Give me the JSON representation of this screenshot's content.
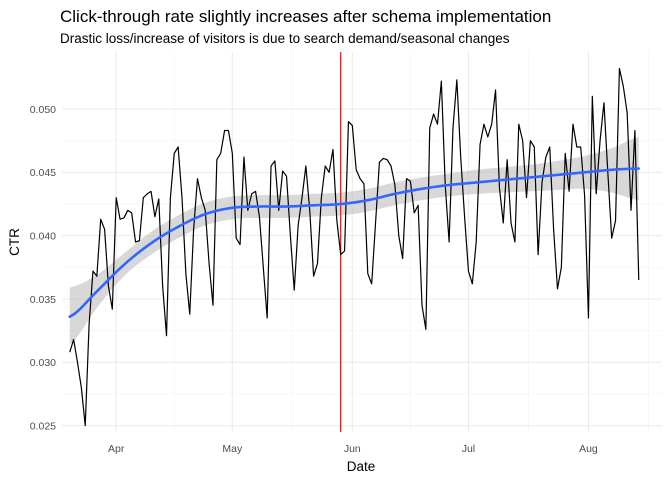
{
  "chart_data": {
    "type": "line",
    "title": "Click-through rate slightly increases after schema implementation",
    "subtitle": "Drastic loss/increase of visitors is due to search demand/seasonal changes",
    "xlabel": "Date",
    "ylabel": "CTR",
    "x_range": [
      "2019-03-18",
      "2019-08-20"
    ],
    "ylim": [
      0.0245,
      0.0545
    ],
    "x_ticks": [
      {
        "date": "2019-04-01",
        "label": "Apr"
      },
      {
        "date": "2019-05-01",
        "label": "May"
      },
      {
        "date": "2019-06-01",
        "label": "Jun"
      },
      {
        "date": "2019-07-01",
        "label": "Jul"
      },
      {
        "date": "2019-08-01",
        "label": "Aug"
      }
    ],
    "y_ticks": [
      {
        "value": 0.025,
        "label": "0.025"
      },
      {
        "value": 0.03,
        "label": "0.030"
      },
      {
        "value": 0.035,
        "label": "0.035"
      },
      {
        "value": 0.04,
        "label": "0.040"
      },
      {
        "value": 0.045,
        "label": "0.045"
      },
      {
        "value": 0.05,
        "label": "0.050"
      }
    ],
    "grid": true,
    "legend": "none",
    "reference_line": {
      "date": "2019-05-29",
      "color": "#ff0000"
    },
    "colors": {
      "ctr_line": "#000000",
      "smooth_line": "#3366ff",
      "confidence_band": "#bebebe",
      "grid_major": "#ebebeb",
      "grid_minor": "#f5f5f5"
    },
    "series": [
      {
        "start_date": "2019-03-20",
        "values": [
          0.0308,
          0.0318,
          0.03,
          0.028,
          0.025,
          0.033,
          0.0372,
          0.0368,
          0.0413,
          0.0405,
          0.036,
          0.0342,
          0.043,
          0.0413,
          0.0414,
          0.042,
          0.0418,
          0.0395,
          0.0396,
          0.043,
          0.0433,
          0.0435,
          0.0415,
          0.0429,
          0.036,
          0.0321,
          0.043,
          0.0465,
          0.047,
          0.043,
          0.037,
          0.0338,
          0.0405,
          0.0445,
          0.043,
          0.042,
          0.0378,
          0.0345,
          0.046,
          0.0465,
          0.0483,
          0.0483,
          0.0465,
          0.0398,
          0.0393,
          0.0462,
          0.042,
          0.0433,
          0.0435,
          0.0415,
          0.0375,
          0.0335,
          0.0455,
          0.0459,
          0.042,
          0.0451,
          0.0447,
          0.04,
          0.0357,
          0.0408,
          0.043,
          0.0455,
          0.042,
          0.0368,
          0.0378,
          0.043,
          0.0455,
          0.045,
          0.0468,
          0.0412,
          0.0385,
          0.0388,
          0.049,
          0.0487,
          0.0452,
          0.0445,
          0.0441,
          0.037,
          0.0362,
          0.041,
          0.0458,
          0.0461,
          0.046,
          0.0455,
          0.044,
          0.04,
          0.0382,
          0.0445,
          0.0443,
          0.0418,
          0.0424,
          0.0345,
          0.0326,
          0.0485,
          0.0496,
          0.0488,
          0.0522,
          0.044,
          0.0395,
          0.0485,
          0.0523,
          0.0462,
          0.0415,
          0.0372,
          0.0362,
          0.0395,
          0.0472,
          0.0488,
          0.0478,
          0.0488,
          0.0515,
          0.0438,
          0.041,
          0.046,
          0.041,
          0.0395,
          0.0488,
          0.0475,
          0.043,
          0.0475,
          0.047,
          0.0385,
          0.0442,
          0.0462,
          0.047,
          0.0405,
          0.0358,
          0.0375,
          0.0465,
          0.0435,
          0.0488,
          0.047,
          0.047,
          0.0432,
          0.0335,
          0.051,
          0.0433,
          0.0475,
          0.0505,
          0.045,
          0.0398,
          0.0412,
          0.0532,
          0.0518,
          0.0497,
          0.042,
          0.0483,
          0.0365
        ]
      }
    ],
    "smooth": {
      "points": [
        {
          "date": "2019-03-20",
          "value": 0.0336,
          "lower": 0.0314,
          "upper": 0.0359
        },
        {
          "date": "2019-03-27",
          "value": 0.0356,
          "lower": 0.0343,
          "upper": 0.0369
        },
        {
          "date": "2019-04-03",
          "value": 0.0377,
          "lower": 0.0368,
          "upper": 0.0386
        },
        {
          "date": "2019-04-10",
          "value": 0.0394,
          "lower": 0.0385,
          "upper": 0.0403
        },
        {
          "date": "2019-04-17",
          "value": 0.0407,
          "lower": 0.0398,
          "upper": 0.0416
        },
        {
          "date": "2019-04-24",
          "value": 0.0417,
          "lower": 0.0408,
          "upper": 0.0426
        },
        {
          "date": "2019-05-01",
          "value": 0.0422,
          "lower": 0.0413,
          "upper": 0.0431
        },
        {
          "date": "2019-05-08",
          "value": 0.0423,
          "lower": 0.0414,
          "upper": 0.0432
        },
        {
          "date": "2019-05-15",
          "value": 0.0423,
          "lower": 0.0414,
          "upper": 0.0432
        },
        {
          "date": "2019-05-22",
          "value": 0.0424,
          "lower": 0.0415,
          "upper": 0.0433
        },
        {
          "date": "2019-05-29",
          "value": 0.0425,
          "lower": 0.0416,
          "upper": 0.0434
        },
        {
          "date": "2019-06-05",
          "value": 0.0428,
          "lower": 0.0419,
          "upper": 0.0437
        },
        {
          "date": "2019-06-12",
          "value": 0.0433,
          "lower": 0.0424,
          "upper": 0.0442
        },
        {
          "date": "2019-06-19",
          "value": 0.0437,
          "lower": 0.0428,
          "upper": 0.0446
        },
        {
          "date": "2019-06-26",
          "value": 0.044,
          "lower": 0.0431,
          "upper": 0.0449
        },
        {
          "date": "2019-07-03",
          "value": 0.0442,
          "lower": 0.0433,
          "upper": 0.0452
        },
        {
          "date": "2019-07-10",
          "value": 0.0444,
          "lower": 0.0434,
          "upper": 0.0454
        },
        {
          "date": "2019-07-17",
          "value": 0.0446,
          "lower": 0.0435,
          "upper": 0.0456
        },
        {
          "date": "2019-07-24",
          "value": 0.0448,
          "lower": 0.0436,
          "upper": 0.0459
        },
        {
          "date": "2019-07-31",
          "value": 0.045,
          "lower": 0.0437,
          "upper": 0.0463
        },
        {
          "date": "2019-08-07",
          "value": 0.0452,
          "lower": 0.0434,
          "upper": 0.0469
        },
        {
          "date": "2019-08-14",
          "value": 0.0453,
          "lower": 0.0428,
          "upper": 0.0478
        }
      ]
    }
  }
}
